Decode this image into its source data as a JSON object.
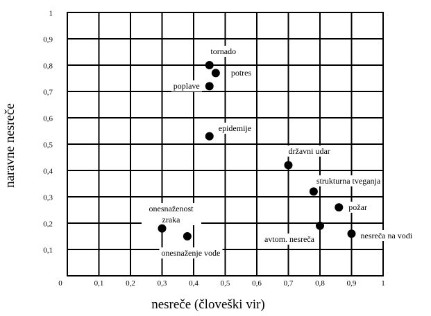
{
  "chart_data": {
    "type": "scatter",
    "xlabel": "nesreče (človeški vir)",
    "ylabel": "naravne nesreče",
    "xlim": [
      0,
      1
    ],
    "ylim": [
      0,
      1
    ],
    "xticks": [
      0,
      {
        "value": 0.1,
        "label": "0,1"
      },
      {
        "value": 0.2,
        "label": "0,2"
      },
      {
        "value": 0.3,
        "label": "0,3"
      },
      {
        "value": 0.4,
        "label": "0,4"
      },
      {
        "value": 0.5,
        "label": "0,5"
      },
      {
        "value": 0.6,
        "label": "0,6"
      },
      {
        "value": 0.7,
        "label": "0,7"
      },
      {
        "value": 0.8,
        "label": "0,8"
      },
      {
        "value": 0.9,
        "label": "0,9"
      },
      1
    ],
    "yticks": [
      {
        "value": 0.1,
        "label": "0,1"
      },
      {
        "value": 0.2,
        "label": "0,2"
      },
      {
        "value": 0.3,
        "label": "0,3"
      },
      {
        "value": 0.4,
        "label": "0,4"
      },
      {
        "value": 0.5,
        "label": "0,5"
      },
      {
        "value": 0.6,
        "label": "0,6"
      },
      {
        "value": 0.7,
        "label": "0,7"
      },
      {
        "value": 0.8,
        "label": "0,8"
      },
      {
        "value": 0.9,
        "label": "0,9"
      },
      1
    ],
    "grid": true,
    "color": "#000000",
    "points": [
      {
        "label": "tornado",
        "x": 0.45,
        "y": 0.8
      },
      {
        "label": "potres",
        "x": 0.47,
        "y": 0.77
      },
      {
        "label": "poplave",
        "x": 0.45,
        "y": 0.72
      },
      {
        "label": "epidemije",
        "x": 0.45,
        "y": 0.53
      },
      {
        "label": "državni udar",
        "x": 0.7,
        "y": 0.42
      },
      {
        "label": "strukturna tveganja",
        "x": 0.78,
        "y": 0.32
      },
      {
        "label": "požar",
        "x": 0.86,
        "y": 0.26
      },
      {
        "label": "avtom. nesreča",
        "x": 0.8,
        "y": 0.19
      },
      {
        "label": "nesreča na vodi",
        "x": 0.9,
        "y": 0.16
      },
      {
        "label": "onesnaženost zraka",
        "x": 0.3,
        "y": 0.18
      },
      {
        "label": "onesnaženje vode",
        "x": 0.38,
        "y": 0.15
      }
    ]
  }
}
